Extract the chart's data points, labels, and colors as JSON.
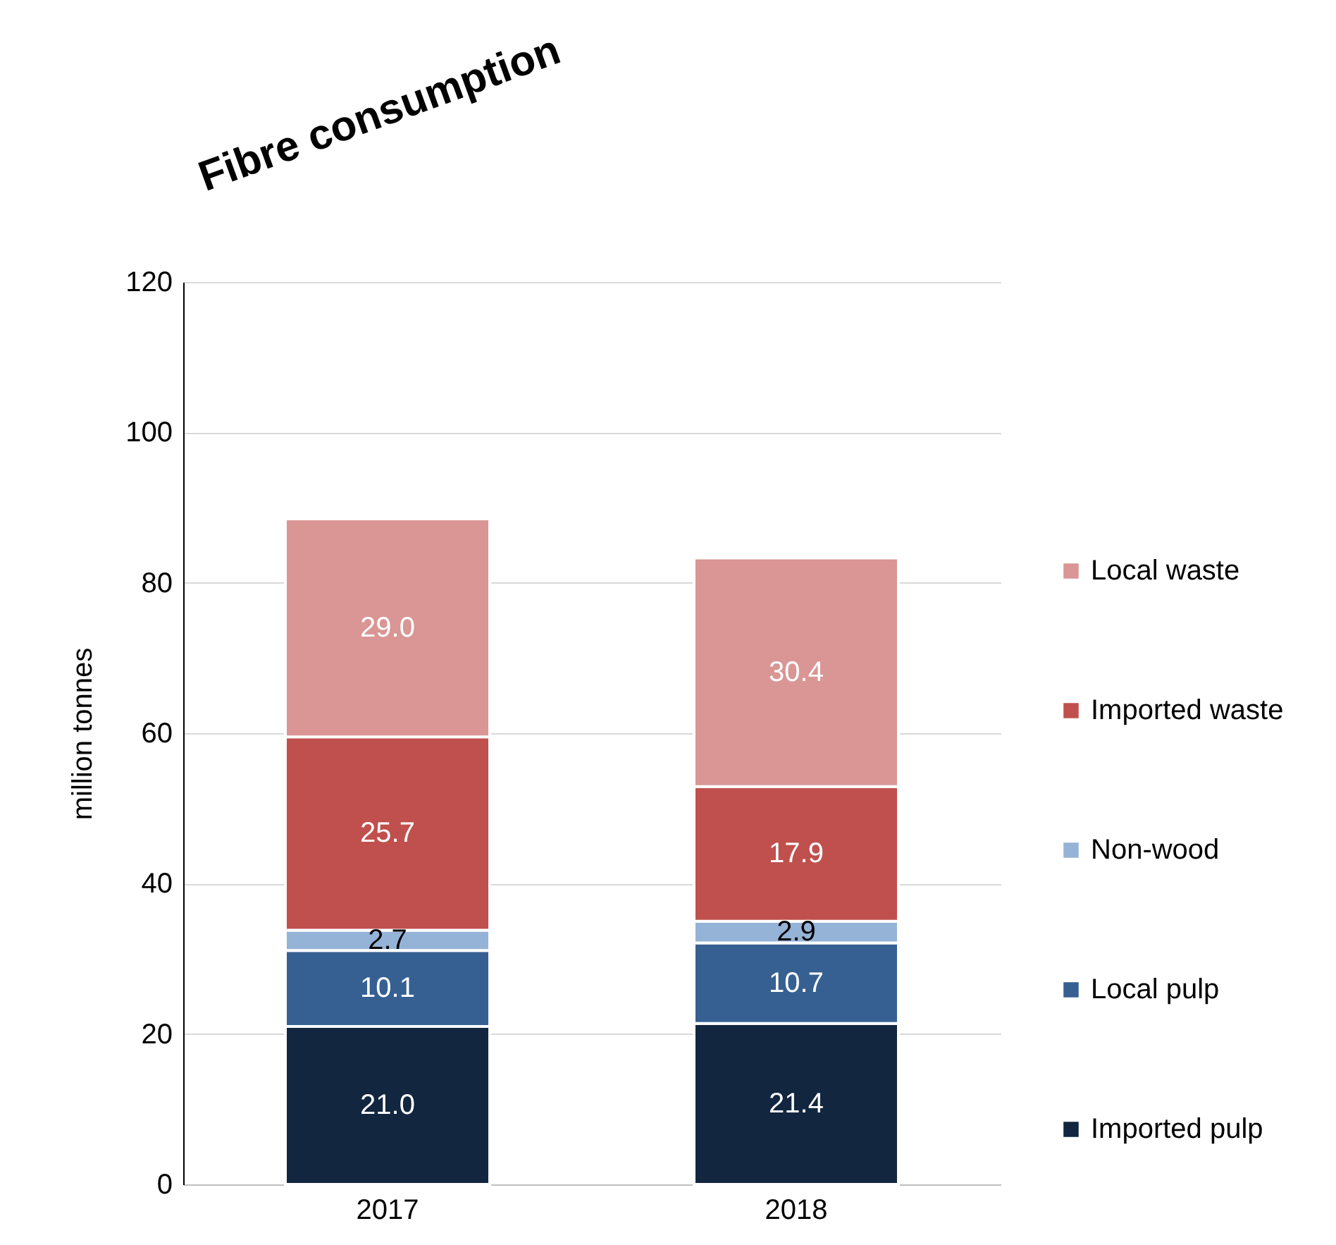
{
  "chart_data": {
    "type": "bar",
    "title": "Fibre consumption",
    "ylabel": "million tonnes",
    "categories": [
      "2017",
      "2018"
    ],
    "stacked": true,
    "series": [
      {
        "name": "Imported pulp",
        "color": "#12263f",
        "values": [
          21.0,
          21.4
        ],
        "value_labels": [
          "21.0",
          "21.4"
        ]
      },
      {
        "name": "Local pulp",
        "color": "#376092",
        "values": [
          10.1,
          10.7
        ],
        "value_labels": [
          "10.1",
          "10.7"
        ]
      },
      {
        "name": "Non-wood",
        "color": "#95b3d7",
        "values": [
          2.7,
          2.9
        ],
        "value_labels": [
          "2.7",
          "2.9"
        ]
      },
      {
        "name": "Imported waste",
        "color": "#c0504d",
        "values": [
          25.7,
          17.9
        ],
        "value_labels": [
          "25.7",
          "17.9"
        ]
      },
      {
        "name": "Local waste",
        "color": "#d99694",
        "values": [
          29.0,
          30.4
        ],
        "value_labels": [
          "29.0",
          "30.4"
        ]
      }
    ],
    "ylim": [
      0,
      120
    ],
    "yticks": [
      0,
      20,
      40,
      60,
      80,
      100,
      120
    ],
    "grid": "y",
    "legend": "right"
  }
}
